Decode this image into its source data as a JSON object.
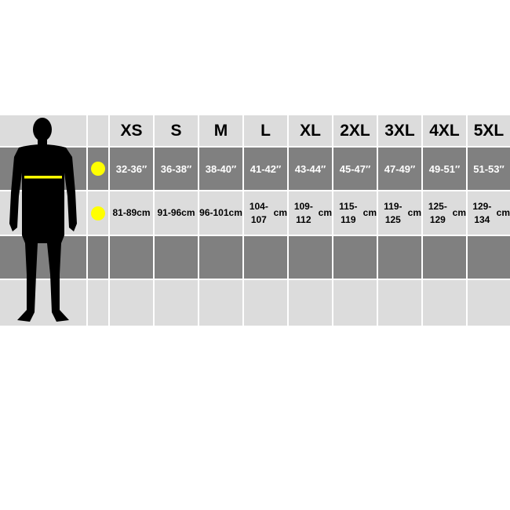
{
  "colors": {
    "dark_row": "#808080",
    "light_row": "#dcdcdc",
    "marker": "#ffff00",
    "separator": "#ffffff"
  },
  "icons": {
    "figure": "male-body-silhouette",
    "chest_line": "chest-measure-line",
    "marker": "yellow-dot"
  },
  "sizes": [
    "XS",
    "S",
    "M",
    "L",
    "XL",
    "2XL",
    "3XL",
    "4XL",
    "5XL"
  ],
  "chest_inches": [
    "32-36″",
    "36-38″",
    "38-40″",
    "41-42″",
    "43-44″",
    "45-47″",
    "47-49″",
    "49-51″",
    "51-53″"
  ],
  "chest_cm": [
    "81-89",
    "91-96",
    "96-101",
    "104-107",
    "109-112",
    "115-119",
    "119-125",
    "125-129",
    "129-134"
  ],
  "cm_unit": "cm"
}
